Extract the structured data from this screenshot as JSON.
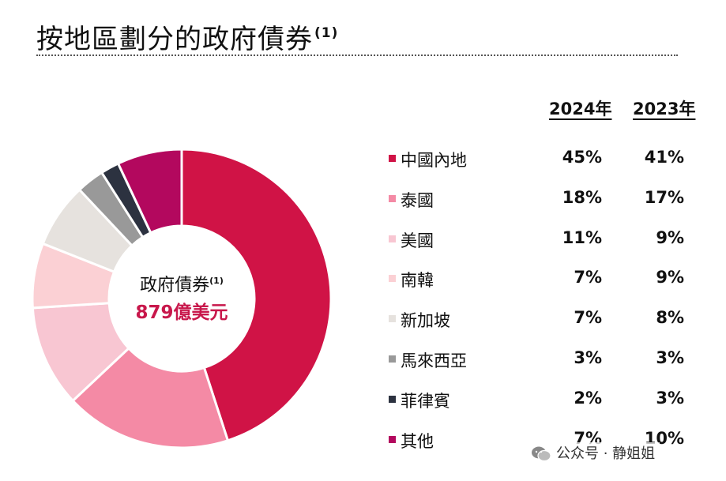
{
  "title": "按地區劃分的政府債券",
  "title_note": "(1)",
  "center": {
    "label": "政府債券",
    "note": "(1)",
    "value": "879億美元"
  },
  "headers": {
    "year_a": "2024年",
    "year_b": "2023年"
  },
  "watermark": {
    "text": "公众号 · 静姐姐"
  },
  "chart_data": {
    "type": "pie",
    "variant": "donut",
    "title": "按地區劃分的政府債券",
    "total_label": "879億美元",
    "series_names": [
      "2024年",
      "2023年"
    ],
    "categories": [
      "中國內地",
      "泰國",
      "美國",
      "南韓",
      "新加坡",
      "馬來西亞",
      "菲律賓",
      "其他"
    ],
    "values": [
      45,
      18,
      11,
      7,
      7,
      3,
      2,
      7
    ],
    "values_2023": [
      41,
      17,
      9,
      9,
      8,
      3,
      3,
      10
    ],
    "colors": [
      "#d01346",
      "#f48aa5",
      "#f8c6d2",
      "#fbd0d4",
      "#e6e2de",
      "#999999",
      "#2c3240",
      "#b3085e"
    ],
    "labels_2024": [
      "45%",
      "18%",
      "11%",
      "7%",
      "7%",
      "3%",
      "2%",
      "7%"
    ],
    "labels_2023": [
      "41%",
      "17%",
      "9%",
      "9%",
      "8%",
      "3%",
      "3%",
      "10%"
    ],
    "start_angle_deg": 0,
    "direction": "clockwise"
  }
}
